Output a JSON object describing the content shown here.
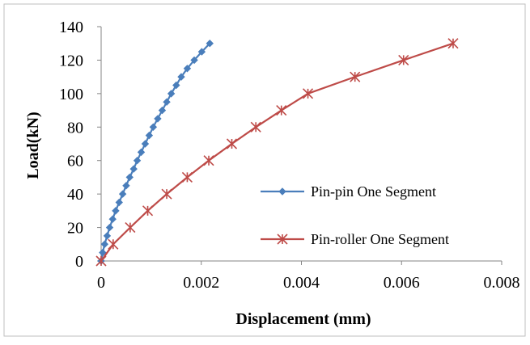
{
  "chart_data": {
    "type": "line",
    "title": "",
    "xlabel": "Displacement (mm)",
    "ylabel": "Load(kN)",
    "xlim": [
      0,
      0.008
    ],
    "ylim": [
      0,
      140
    ],
    "x_ticks": [
      0,
      0.002,
      0.004,
      0.006,
      0.008
    ],
    "x_tick_labels": [
      "0",
      "0.002",
      "0.004",
      "0.006",
      "0.008"
    ],
    "y_ticks": [
      0,
      20,
      40,
      60,
      80,
      100,
      120,
      140
    ],
    "y_tick_labels": [
      "0",
      "20",
      "40",
      "60",
      "80",
      "100",
      "120",
      "140"
    ],
    "grid": false,
    "legend_position": "right",
    "series": [
      {
        "name": "Pin-pin One Segment",
        "color": "#4A7EBB",
        "marker": "diamond",
        "points": [
          [
            0,
            0
          ],
          [
            3e-05,
            5
          ],
          [
            7e-05,
            10
          ],
          [
            0.00012,
            15
          ],
          [
            0.00017,
            20
          ],
          [
            0.00023,
            25
          ],
          [
            0.00029,
            30
          ],
          [
            0.00036,
            35
          ],
          [
            0.00043,
            40
          ],
          [
            0.0005,
            45
          ],
          [
            0.00057,
            50
          ],
          [
            0.00065,
            55
          ],
          [
            0.00072,
            60
          ],
          [
            0.0008,
            65
          ],
          [
            0.00088,
            70
          ],
          [
            0.00096,
            75
          ],
          [
            0.00104,
            80
          ],
          [
            0.00113,
            85
          ],
          [
            0.00122,
            90
          ],
          [
            0.00131,
            95
          ],
          [
            0.0014,
            100
          ],
          [
            0.0015,
            105
          ],
          [
            0.0016,
            110
          ],
          [
            0.00172,
            115
          ],
          [
            0.00186,
            120
          ],
          [
            0.00201,
            125
          ],
          [
            0.00217,
            130
          ]
        ]
      },
      {
        "name": "Pin-roller One Segment",
        "color": "#BE4B48",
        "marker": "star",
        "points": [
          [
            0,
            0
          ],
          [
            0.00024,
            10
          ],
          [
            0.00058,
            20
          ],
          [
            0.00093,
            30
          ],
          [
            0.00131,
            40
          ],
          [
            0.00172,
            50
          ],
          [
            0.00215,
            60
          ],
          [
            0.00261,
            70
          ],
          [
            0.00309,
            80
          ],
          [
            0.0036,
            90
          ],
          [
            0.00413,
            100
          ],
          [
            0.00507,
            110
          ],
          [
            0.00604,
            120
          ],
          [
            0.00703,
            130
          ]
        ]
      }
    ]
  }
}
